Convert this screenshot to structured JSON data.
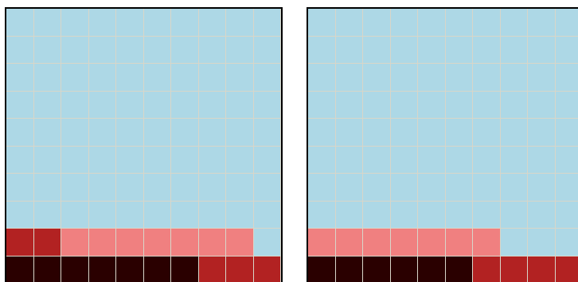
{
  "palette": {
    "0": "#add8e6",
    "1": "#f08080",
    "2": "#b22222",
    "3": "#2a0000"
  },
  "boards": [
    {
      "name": "left-board",
      "rows": [
        [
          0,
          0,
          0,
          0,
          0,
          0,
          0,
          0,
          0,
          0
        ],
        [
          0,
          0,
          0,
          0,
          0,
          0,
          0,
          0,
          0,
          0
        ],
        [
          0,
          0,
          0,
          0,
          0,
          0,
          0,
          0,
          0,
          0
        ],
        [
          0,
          0,
          0,
          0,
          0,
          0,
          0,
          0,
          0,
          0
        ],
        [
          0,
          0,
          0,
          0,
          0,
          0,
          0,
          0,
          0,
          0
        ],
        [
          0,
          0,
          0,
          0,
          0,
          0,
          0,
          0,
          0,
          0
        ],
        [
          0,
          0,
          0,
          0,
          0,
          0,
          0,
          0,
          0,
          0
        ],
        [
          0,
          0,
          0,
          0,
          0,
          0,
          0,
          0,
          0,
          0
        ],
        [
          2,
          2,
          1,
          1,
          1,
          1,
          1,
          1,
          1,
          0
        ],
        [
          3,
          3,
          3,
          3,
          3,
          3,
          3,
          2,
          2,
          2
        ]
      ]
    },
    {
      "name": "right-board",
      "rows": [
        [
          0,
          0,
          0,
          0,
          0,
          0,
          0,
          0,
          0,
          0
        ],
        [
          0,
          0,
          0,
          0,
          0,
          0,
          0,
          0,
          0,
          0
        ],
        [
          0,
          0,
          0,
          0,
          0,
          0,
          0,
          0,
          0,
          0
        ],
        [
          0,
          0,
          0,
          0,
          0,
          0,
          0,
          0,
          0,
          0
        ],
        [
          0,
          0,
          0,
          0,
          0,
          0,
          0,
          0,
          0,
          0
        ],
        [
          0,
          0,
          0,
          0,
          0,
          0,
          0,
          0,
          0,
          0
        ],
        [
          0,
          0,
          0,
          0,
          0,
          0,
          0,
          0,
          0,
          0
        ],
        [
          0,
          0,
          0,
          0,
          0,
          0,
          0,
          0,
          0,
          0
        ],
        [
          1,
          1,
          1,
          1,
          1,
          1,
          1,
          0,
          0,
          0
        ],
        [
          3,
          3,
          3,
          3,
          3,
          3,
          2,
          2,
          2,
          2
        ]
      ]
    }
  ]
}
